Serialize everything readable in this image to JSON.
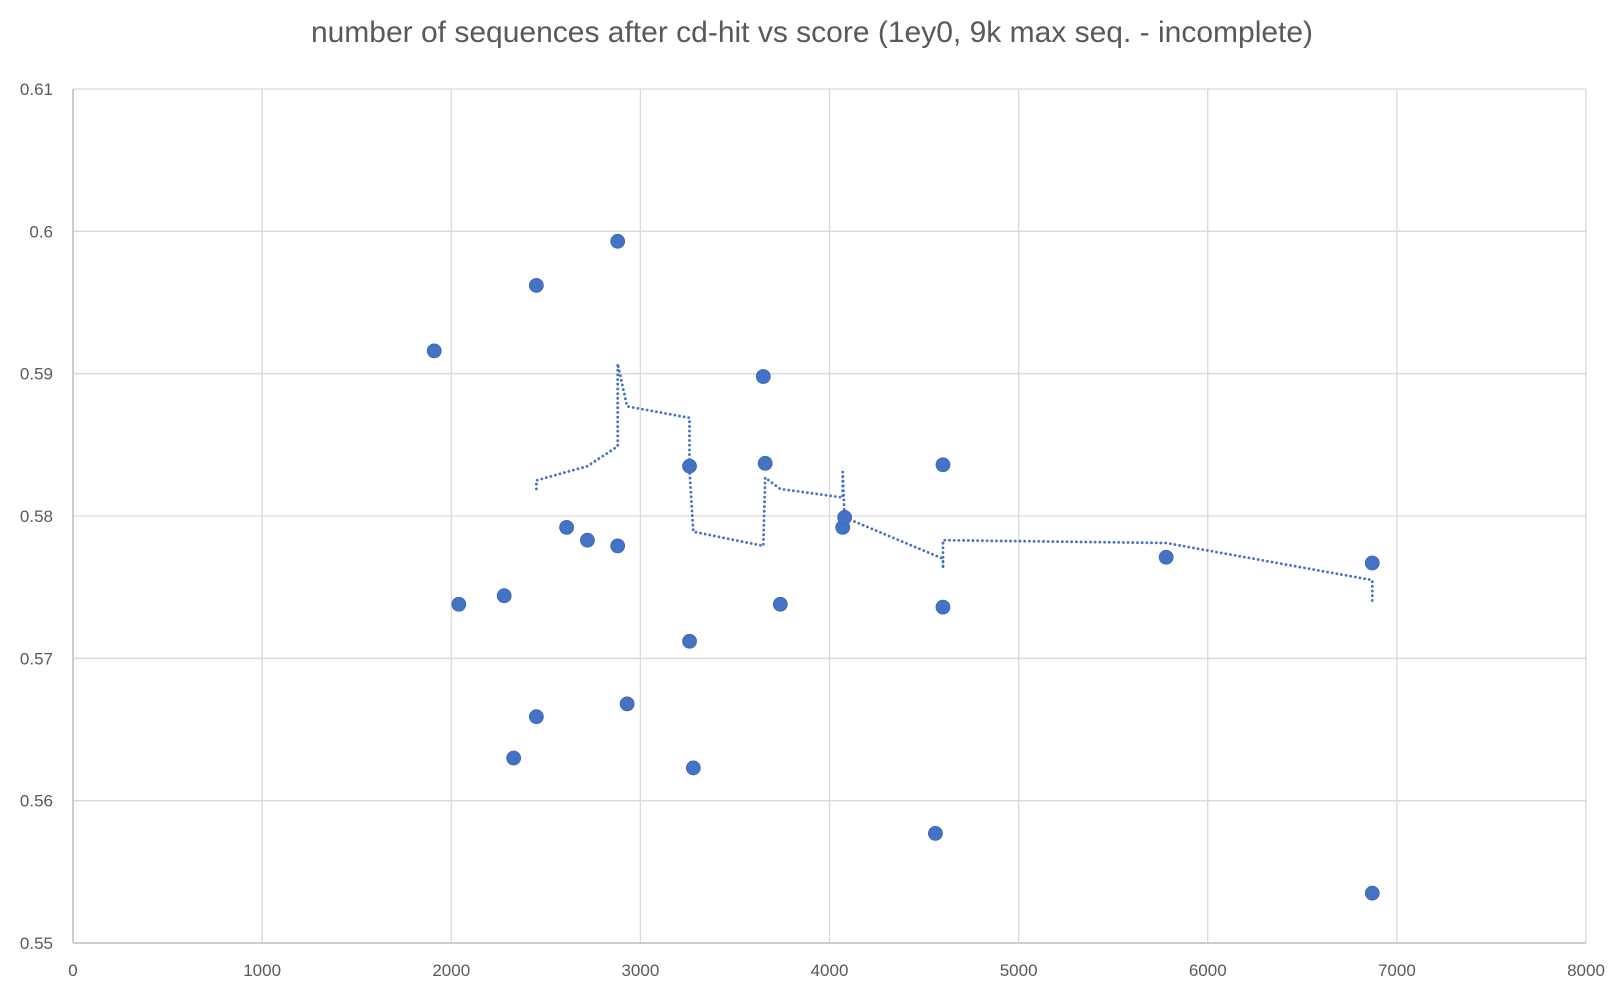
{
  "chart_data": {
    "type": "scatter",
    "title": "number of sequences after cd-hit vs score (1ey0, 9k max seq. - incomplete)",
    "xlabel": "",
    "ylabel": "",
    "xlim": [
      0,
      8000
    ],
    "ylim": [
      0.55,
      0.61
    ],
    "x_ticks": [
      0,
      1000,
      2000,
      3000,
      4000,
      5000,
      6000,
      7000,
      8000
    ],
    "y_ticks": [
      0.55,
      0.56,
      0.57,
      0.58,
      0.59,
      0.6,
      0.61
    ],
    "x_tick_labels": [
      "0",
      "1000",
      "2000",
      "3000",
      "4000",
      "5000",
      "6000",
      "7000",
      "8000"
    ],
    "y_tick_labels": [
      "0.55",
      "0.56",
      "0.57",
      "0.58",
      "0.59",
      "0.6",
      "0.61"
    ],
    "grid": true,
    "legend": "none",
    "colors": {
      "marker": "#4472C4",
      "trendline": "#4472C4",
      "grid": "#D9D9D9",
      "text": "#595959"
    },
    "series": [
      {
        "values": [
          [
            1910,
            0.5916
          ],
          [
            2040,
            0.5738
          ],
          [
            2280,
            0.5744
          ],
          [
            2330,
            0.563
          ],
          [
            2450,
            0.5962
          ],
          [
            2450,
            0.5659
          ],
          [
            2610,
            0.5792
          ],
          [
            2720,
            0.5783
          ],
          [
            2880,
            0.5993
          ],
          [
            2880,
            0.5779
          ],
          [
            2930,
            0.5668
          ],
          [
            3260,
            0.5835
          ],
          [
            3260,
            0.5712
          ],
          [
            3280,
            0.5623
          ],
          [
            3650,
            0.5898
          ],
          [
            3660,
            0.5837
          ],
          [
            3740,
            0.5738
          ],
          [
            4070,
            0.5792
          ],
          [
            4080,
            0.5799
          ],
          [
            4560,
            0.5577
          ],
          [
            4600,
            0.5836
          ],
          [
            4600,
            0.5736
          ],
          [
            5780,
            0.5771
          ],
          [
            6870,
            0.5767
          ],
          [
            6870,
            0.5535
          ]
        ]
      }
    ],
    "trendline": {
      "style": "dotted",
      "type": "moving average",
      "values": [
        [
          2450,
          0.5819
        ],
        [
          2450,
          0.5825
        ],
        [
          2720,
          0.5835
        ],
        [
          2880,
          0.5849
        ],
        [
          2880,
          0.5907
        ],
        [
          2930,
          0.5877
        ],
        [
          3260,
          0.5869
        ],
        [
          3260,
          0.5832
        ],
        [
          3280,
          0.5789
        ],
        [
          3650,
          0.5779
        ],
        [
          3660,
          0.5827
        ],
        [
          3740,
          0.5819
        ],
        [
          4070,
          0.5813
        ],
        [
          4070,
          0.5831
        ],
        [
          4080,
          0.5799
        ],
        [
          4600,
          0.577
        ],
        [
          4600,
          0.5763
        ],
        [
          4600,
          0.5783
        ],
        [
          5780,
          0.5781
        ],
        [
          6870,
          0.5755
        ],
        [
          6870,
          0.574
        ]
      ]
    }
  }
}
